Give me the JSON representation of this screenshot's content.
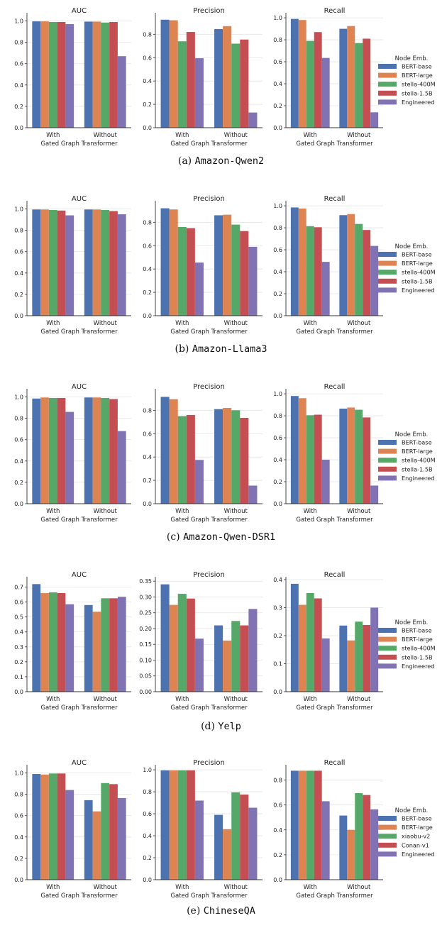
{
  "figure": {
    "rows": [
      {
        "caption_label": "(a)",
        "caption_name": "Amazon-Qwen2",
        "group_title": "Gated Graph Transformer",
        "legend_title": "Node Emb.",
        "series_names": [
          "BERT-base",
          "BERT-large",
          "stella-400M",
          "stella-1.5B",
          "Engineered"
        ]
      },
      {
        "caption_label": "(b)",
        "caption_name": "Amazon-Llama3",
        "group_title": "Gated Graph Transformer",
        "legend_title": "Node Emb.",
        "series_names": [
          "BERT-base",
          "BERT-large",
          "stella-400M",
          "stella-1.5B",
          "Engineered"
        ]
      },
      {
        "caption_label": "(c)",
        "caption_name": "Amazon-Qwen-DSR1",
        "group_title": "Gated Graph Transformer",
        "legend_title": "Node Emb.",
        "series_names": [
          "BERT-base",
          "BERT-large",
          "stella-400M",
          "stella-1.5B",
          "Engineered"
        ]
      },
      {
        "caption_label": "(d)",
        "caption_name": "Yelp",
        "group_title": "Gated Graph Transformer",
        "legend_title": "Node Emb.",
        "series_names": [
          "BERT-base",
          "BERT-large",
          "stella-400M",
          "stella-1.5B",
          "Engineered"
        ]
      },
      {
        "caption_label": "(e)",
        "caption_name": "ChineseQA",
        "group_title": "Gated Graph Transformer",
        "legend_title": "Node Emb.",
        "series_names": [
          "BERT-base",
          "BERT-large",
          "xiaobu-v2",
          "Conan-v1",
          "Engineered"
        ]
      }
    ],
    "colors": [
      "#4c72b0",
      "#dd8452",
      "#55a868",
      "#c44e52",
      "#8172b3"
    ]
  },
  "chart_data": [
    {
      "type": "bar",
      "title": "AUC",
      "xlabel": "Gated Graph Transformer",
      "categories": [
        "With",
        "Without"
      ],
      "ylim": [
        0,
        1.05
      ],
      "yticks": [
        "0.0",
        "0.2",
        "0.4",
        "0.6",
        "0.8",
        "1.0"
      ],
      "legend": "Node Emb.",
      "series": [
        {
          "name": "BERT-base",
          "values": [
            0.996,
            0.994
          ]
        },
        {
          "name": "BERT-large",
          "values": [
            0.996,
            0.994
          ]
        },
        {
          "name": "stella-400M",
          "values": [
            0.99,
            0.985
          ]
        },
        {
          "name": "stella-1.5B",
          "values": [
            0.99,
            0.99
          ]
        },
        {
          "name": "Engineered",
          "values": [
            0.97,
            0.67
          ]
        }
      ]
    },
    {
      "type": "bar",
      "title": "Precision",
      "xlabel": "Gated Graph Transformer",
      "categories": [
        "With",
        "Without"
      ],
      "ylim": [
        0,
        0.96
      ],
      "yticks": [
        "0.0",
        "0.2",
        "0.4",
        "0.6",
        "0.8"
      ],
      "legend": "Node Emb.",
      "series": [
        {
          "name": "BERT-base",
          "values": [
            0.925,
            0.845
          ]
        },
        {
          "name": "BERT-large",
          "values": [
            0.92,
            0.87
          ]
        },
        {
          "name": "stella-400M",
          "values": [
            0.74,
            0.72
          ]
        },
        {
          "name": "stella-1.5B",
          "values": [
            0.82,
            0.755
          ]
        },
        {
          "name": "Engineered",
          "values": [
            0.595,
            0.13
          ]
        }
      ]
    },
    {
      "type": "bar",
      "title": "Recall",
      "xlabel": "Gated Graph Transformer",
      "categories": [
        "With",
        "Without"
      ],
      "ylim": [
        0,
        1.02
      ],
      "yticks": [
        "0.0",
        "0.2",
        "0.4",
        "0.6",
        "0.8",
        "1.0"
      ],
      "legend": "Node Emb.",
      "series": [
        {
          "name": "BERT-base",
          "values": [
            0.99,
            0.9
          ]
        },
        {
          "name": "BERT-large",
          "values": [
            0.98,
            0.925
          ]
        },
        {
          "name": "stella-400M",
          "values": [
            0.79,
            0.77
          ]
        },
        {
          "name": "stella-1.5B",
          "values": [
            0.87,
            0.81
          ]
        },
        {
          "name": "Engineered",
          "values": [
            0.635,
            0.14
          ]
        }
      ]
    },
    {
      "type": "bar",
      "title": "AUC",
      "xlabel": "Gated Graph Transformer",
      "categories": [
        "With",
        "Without"
      ],
      "ylim": [
        0,
        1.05
      ],
      "yticks": [
        "0.0",
        "0.2",
        "0.4",
        "0.6",
        "0.8",
        "1.0"
      ],
      "legend": "Node Emb.",
      "series": [
        {
          "name": "BERT-base",
          "values": [
            0.995,
            0.995
          ]
        },
        {
          "name": "BERT-large",
          "values": [
            0.995,
            0.995
          ]
        },
        {
          "name": "stella-400M",
          "values": [
            0.99,
            0.99
          ]
        },
        {
          "name": "stella-1.5B",
          "values": [
            0.985,
            0.98
          ]
        },
        {
          "name": "Engineered",
          "values": [
            0.94,
            0.95
          ]
        }
      ]
    },
    {
      "type": "bar",
      "title": "Precision",
      "xlabel": "Gated Graph Transformer",
      "categories": [
        "With",
        "Without"
      ],
      "ylim": [
        0,
        0.96
      ],
      "yticks": [
        "0.0",
        "0.2",
        "0.4",
        "0.6",
        "0.8"
      ],
      "legend": "Node Emb.",
      "series": [
        {
          "name": "BERT-base",
          "values": [
            0.92,
            0.86
          ]
        },
        {
          "name": "BERT-large",
          "values": [
            0.91,
            0.865
          ]
        },
        {
          "name": "stella-400M",
          "values": [
            0.76,
            0.78
          ]
        },
        {
          "name": "stella-1.5B",
          "values": [
            0.75,
            0.725
          ]
        },
        {
          "name": "Engineered",
          "values": [
            0.455,
            0.59
          ]
        }
      ]
    },
    {
      "type": "bar",
      "title": "Recall",
      "xlabel": "Gated Graph Transformer",
      "categories": [
        "With",
        "Without"
      ],
      "ylim": [
        0,
        1.02
      ],
      "yticks": [
        "0.0",
        "0.2",
        "0.4",
        "0.6",
        "0.8",
        "1.0"
      ],
      "legend": "Node Emb.",
      "series": [
        {
          "name": "BERT-base",
          "values": [
            0.985,
            0.915
          ]
        },
        {
          "name": "BERT-large",
          "values": [
            0.975,
            0.925
          ]
        },
        {
          "name": "stella-400M",
          "values": [
            0.815,
            0.835
          ]
        },
        {
          "name": "stella-1.5B",
          "values": [
            0.805,
            0.78
          ]
        },
        {
          "name": "Engineered",
          "values": [
            0.49,
            0.635
          ]
        }
      ]
    },
    {
      "type": "bar",
      "title": "AUC",
      "xlabel": "Gated Graph Transformer",
      "categories": [
        "With",
        "Without"
      ],
      "ylim": [
        0,
        1.05
      ],
      "yticks": [
        "0.0",
        "0.2",
        "0.4",
        "0.6",
        "0.8",
        "1.0"
      ],
      "legend": "Node Emb.",
      "series": [
        {
          "name": "BERT-base",
          "values": [
            0.985,
            0.995
          ]
        },
        {
          "name": "BERT-large",
          "values": [
            0.995,
            0.995
          ]
        },
        {
          "name": "stella-400M",
          "values": [
            0.99,
            0.99
          ]
        },
        {
          "name": "stella-1.5B",
          "values": [
            0.99,
            0.98
          ]
        },
        {
          "name": "Engineered",
          "values": [
            0.86,
            0.68
          ]
        }
      ]
    },
    {
      "type": "bar",
      "title": "Precision",
      "xlabel": "Gated Graph Transformer",
      "categories": [
        "With",
        "Without"
      ],
      "ylim": [
        0,
        0.96
      ],
      "yticks": [
        "0.0",
        "0.2",
        "0.4",
        "0.6",
        "0.8"
      ],
      "legend": "Node Emb.",
      "series": [
        {
          "name": "BERT-base",
          "values": [
            0.915,
            0.81
          ]
        },
        {
          "name": "BERT-large",
          "values": [
            0.895,
            0.82
          ]
        },
        {
          "name": "stella-400M",
          "values": [
            0.75,
            0.8
          ]
        },
        {
          "name": "stella-1.5B",
          "values": [
            0.76,
            0.735
          ]
        },
        {
          "name": "Engineered",
          "values": [
            0.375,
            0.155
          ]
        }
      ]
    },
    {
      "type": "bar",
      "title": "Recall",
      "xlabel": "Gated Graph Transformer",
      "categories": [
        "With",
        "Without"
      ],
      "ylim": [
        0,
        1.02
      ],
      "yticks": [
        "0.0",
        "0.2",
        "0.4",
        "0.6",
        "0.8",
        "1.0"
      ],
      "legend": "Node Emb.",
      "series": [
        {
          "name": "BERT-base",
          "values": [
            0.98,
            0.865
          ]
        },
        {
          "name": "BERT-large",
          "values": [
            0.96,
            0.875
          ]
        },
        {
          "name": "stella-400M",
          "values": [
            0.805,
            0.855
          ]
        },
        {
          "name": "stella-1.5B",
          "values": [
            0.81,
            0.785
          ]
        },
        {
          "name": "Engineered",
          "values": [
            0.4,
            0.165
          ]
        }
      ]
    },
    {
      "type": "bar",
      "title": "AUC",
      "xlabel": "Gated Graph Transformer",
      "categories": [
        "With",
        "Without"
      ],
      "ylim": [
        0,
        0.75
      ],
      "yticks": [
        "0.0",
        "0.1",
        "0.2",
        "0.3",
        "0.4",
        "0.5",
        "0.6",
        "0.7"
      ],
      "legend": "Node Emb.",
      "series": [
        {
          "name": "BERT-base",
          "values": [
            0.72,
            0.58
          ]
        },
        {
          "name": "BERT-large",
          "values": [
            0.66,
            0.535
          ]
        },
        {
          "name": "stella-400M",
          "values": [
            0.665,
            0.625
          ]
        },
        {
          "name": "stella-1.5B",
          "values": [
            0.66,
            0.625
          ]
        },
        {
          "name": "Engineered",
          "values": [
            0.585,
            0.635
          ]
        }
      ]
    },
    {
      "type": "bar",
      "title": "Precision",
      "xlabel": "Gated Graph Transformer",
      "categories": [
        "With",
        "Without"
      ],
      "ylim": [
        0,
        0.355
      ],
      "yticks": [
        "0.00",
        "0.05",
        "0.10",
        "0.15",
        "0.20",
        "0.25",
        "0.30",
        "0.35"
      ],
      "legend": "Node Emb.",
      "series": [
        {
          "name": "BERT-base",
          "values": [
            0.34,
            0.21
          ]
        },
        {
          "name": "BERT-large",
          "values": [
            0.275,
            0.162
          ]
        },
        {
          "name": "stella-400M",
          "values": [
            0.31,
            0.224
          ]
        },
        {
          "name": "stella-1.5B",
          "values": [
            0.295,
            0.21
          ]
        },
        {
          "name": "Engineered",
          "values": [
            0.168,
            0.262
          ]
        }
      ]
    },
    {
      "type": "bar",
      "title": "Recall",
      "xlabel": "Gated Graph Transformer",
      "categories": [
        "With",
        "Without"
      ],
      "ylim": [
        0,
        0.4
      ],
      "yticks": [
        "0.0",
        "0.1",
        "0.2",
        "0.3",
        "0.4"
      ],
      "legend": "Node Emb.",
      "series": [
        {
          "name": "BERT-base",
          "values": [
            0.385,
            0.236
          ]
        },
        {
          "name": "BERT-large",
          "values": [
            0.31,
            0.183
          ]
        },
        {
          "name": "stella-400M",
          "values": [
            0.352,
            0.25
          ]
        },
        {
          "name": "stella-1.5B",
          "values": [
            0.333,
            0.238
          ]
        },
        {
          "name": "Engineered",
          "values": [
            0.19,
            0.3
          ]
        }
      ]
    },
    {
      "type": "bar",
      "title": "AUC",
      "xlabel": "Gated Graph Transformer",
      "categories": [
        "With",
        "Without"
      ],
      "ylim": [
        0,
        1.05
      ],
      "yticks": [
        "0.0",
        "0.2",
        "0.4",
        "0.6",
        "0.8",
        "1.0"
      ],
      "legend": "Node Emb.",
      "series": [
        {
          "name": "BERT-base",
          "values": [
            0.99,
            0.745
          ]
        },
        {
          "name": "BERT-large",
          "values": [
            0.985,
            0.64
          ]
        },
        {
          "name": "xiaobu-v2",
          "values": [
            0.995,
            0.905
          ]
        },
        {
          "name": "Conan-v1",
          "values": [
            0.995,
            0.895
          ]
        },
        {
          "name": "Engineered",
          "values": [
            0.84,
            0.765
          ]
        }
      ]
    },
    {
      "type": "bar",
      "title": "Precision",
      "xlabel": "Gated Graph Transformer",
      "categories": [
        "With",
        "Without"
      ],
      "ylim": [
        0,
        1.02
      ],
      "yticks": [
        "0.0",
        "0.2",
        "0.4",
        "0.6",
        "0.8",
        "1.0"
      ],
      "legend": "Node Emb.",
      "series": [
        {
          "name": "BERT-base",
          "values": [
            0.995,
            0.59
          ]
        },
        {
          "name": "BERT-large",
          "values": [
            0.995,
            0.46
          ]
        },
        {
          "name": "xiaobu-v2",
          "values": [
            0.995,
            0.795
          ]
        },
        {
          "name": "Conan-v1",
          "values": [
            0.995,
            0.775
          ]
        },
        {
          "name": "Engineered",
          "values": [
            0.72,
            0.655
          ]
        }
      ]
    },
    {
      "type": "bar",
      "title": "Recall",
      "xlabel": "Gated Graph Transformer",
      "categories": [
        "With",
        "Without"
      ],
      "ylim": [
        0,
        0.9
      ],
      "yticks": [
        "0.0",
        "0.2",
        "0.4",
        "0.6",
        "0.8"
      ],
      "legend": "Node Emb.",
      "series": [
        {
          "name": "BERT-base",
          "values": [
            0.875,
            0.515
          ]
        },
        {
          "name": "BERT-large",
          "values": [
            0.875,
            0.4
          ]
        },
        {
          "name": "xiaobu-v2",
          "values": [
            0.875,
            0.695
          ]
        },
        {
          "name": "Conan-v1",
          "values": [
            0.875,
            0.68
          ]
        },
        {
          "name": "Engineered",
          "values": [
            0.63,
            0.565
          ]
        }
      ]
    }
  ]
}
